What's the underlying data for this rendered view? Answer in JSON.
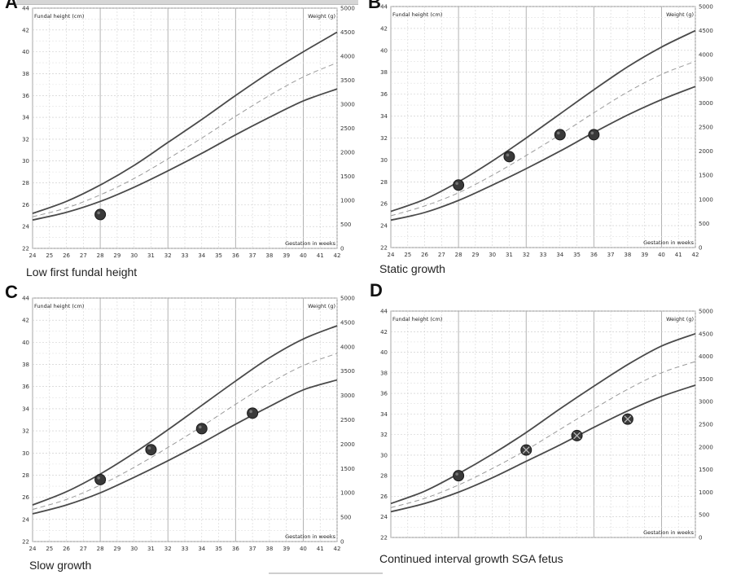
{
  "figure": {
    "panels": [
      {
        "letter": "A",
        "caption": "Low first fundal height",
        "chart_data": {
          "type": "line",
          "ylabel": "Fundal height (cm)",
          "y2label": "Weight (g)",
          "xlabel": "Gestation in weeks",
          "xlim": [
            24,
            42
          ],
          "ylim": [
            22,
            44
          ],
          "y2lim": [
            0,
            5000
          ],
          "x_ticks": [
            24,
            25,
            26,
            27,
            28,
            29,
            30,
            31,
            32,
            33,
            34,
            35,
            36,
            37,
            38,
            39,
            40,
            41,
            42
          ],
          "y_ticks": [
            22,
            24,
            26,
            28,
            30,
            32,
            34,
            36,
            38,
            40,
            42,
            44
          ],
          "y2_ticks": [
            0,
            500,
            1000,
            1500,
            2000,
            2500,
            3000,
            3500,
            4000,
            4500,
            5000
          ],
          "grid": true,
          "series": [
            {
              "role": "upper",
              "style": "solid",
              "x": [
                24,
                26,
                28,
                30,
                32,
                34,
                36,
                38,
                40,
                42
              ],
              "y": [
                25.2,
                26.3,
                27.8,
                29.6,
                31.7,
                33.8,
                36.0,
                38.1,
                40.0,
                41.8
              ]
            },
            {
              "role": "median",
              "style": "dashed",
              "x": [
                24,
                26,
                28,
                30,
                32,
                34,
                36,
                38,
                40,
                42
              ],
              "y": [
                24.9,
                25.7,
                26.9,
                28.4,
                30.2,
                32.1,
                34.1,
                36.0,
                37.7,
                39.0
              ]
            },
            {
              "role": "lower",
              "style": "solid",
              "x": [
                24,
                26,
                28,
                30,
                32,
                34,
                36,
                38,
                40,
                42
              ],
              "y": [
                24.6,
                25.3,
                26.3,
                27.6,
                29.1,
                30.7,
                32.4,
                34.0,
                35.5,
                36.6
              ]
            }
          ],
          "points": [
            {
              "x": 28,
              "y": 25.1,
              "marker": "filled"
            }
          ]
        }
      },
      {
        "letter": "B",
        "caption": "Static growth",
        "chart_data": {
          "type": "line",
          "ylabel": "Fundal height (cm)",
          "y2label": "Weight (g)",
          "xlabel": "Gestation in weeks",
          "xlim": [
            24,
            42
          ],
          "ylim": [
            22,
            44
          ],
          "y2lim": [
            0,
            5000
          ],
          "x_ticks": [
            24,
            25,
            26,
            27,
            28,
            29,
            30,
            31,
            32,
            33,
            34,
            35,
            36,
            37,
            38,
            39,
            40,
            41,
            42
          ],
          "y_ticks": [
            22,
            24,
            26,
            28,
            30,
            32,
            34,
            36,
            38,
            40,
            42,
            44
          ],
          "y2_ticks": [
            0,
            500,
            1000,
            1500,
            2000,
            2500,
            3000,
            3500,
            4000,
            4500,
            5000
          ],
          "grid": true,
          "series": [
            {
              "role": "upper",
              "style": "solid",
              "x": [
                24,
                26,
                28,
                30,
                32,
                34,
                36,
                38,
                40,
                42
              ],
              "y": [
                25.3,
                26.4,
                28.0,
                29.9,
                32.0,
                34.2,
                36.4,
                38.5,
                40.3,
                41.8
              ]
            },
            {
              "role": "median",
              "style": "dashed",
              "x": [
                24,
                26,
                28,
                30,
                32,
                34,
                36,
                38,
                40,
                42
              ],
              "y": [
                24.9,
                25.8,
                27.0,
                28.6,
                30.4,
                32.3,
                34.3,
                36.2,
                37.8,
                39.0
              ]
            },
            {
              "role": "lower",
              "style": "solid",
              "x": [
                24,
                26,
                28,
                30,
                32,
                34,
                36,
                38,
                40,
                42
              ],
              "y": [
                24.5,
                25.2,
                26.3,
                27.7,
                29.2,
                30.8,
                32.5,
                34.1,
                35.5,
                36.7
              ]
            }
          ],
          "points": [
            {
              "x": 28,
              "y": 27.7,
              "marker": "filled"
            },
            {
              "x": 31,
              "y": 30.3,
              "marker": "filled"
            },
            {
              "x": 34,
              "y": 32.3,
              "marker": "filled"
            },
            {
              "x": 36,
              "y": 32.3,
              "marker": "filled"
            }
          ]
        }
      },
      {
        "letter": "C",
        "caption": "Slow growth",
        "chart_data": {
          "type": "line",
          "ylabel": "Fundal height (cm)",
          "y2label": "Weight (g)",
          "xlabel": "Gestation in weeks",
          "xlim": [
            24,
            42
          ],
          "ylim": [
            22,
            44
          ],
          "y2lim": [
            0,
            5000
          ],
          "x_ticks": [
            24,
            25,
            26,
            27,
            28,
            29,
            30,
            31,
            32,
            33,
            34,
            35,
            36,
            37,
            38,
            39,
            40,
            41,
            42
          ],
          "y_ticks": [
            22,
            24,
            26,
            28,
            30,
            32,
            34,
            36,
            38,
            40,
            42,
            44
          ],
          "y2_ticks": [
            0,
            500,
            1000,
            1500,
            2000,
            2500,
            3000,
            3500,
            4000,
            4500,
            5000
          ],
          "grid": true,
          "series": [
            {
              "role": "upper",
              "style": "solid",
              "x": [
                24,
                26,
                28,
                30,
                32,
                34,
                36,
                38,
                40,
                42
              ],
              "y": [
                25.3,
                26.5,
                28.1,
                30.0,
                32.1,
                34.3,
                36.5,
                38.6,
                40.3,
                41.5
              ]
            },
            {
              "role": "median",
              "style": "dashed",
              "x": [
                24,
                26,
                28,
                30,
                32,
                34,
                36,
                38,
                40,
                42
              ],
              "y": [
                24.9,
                25.8,
                27.1,
                28.7,
                30.5,
                32.4,
                34.4,
                36.3,
                37.9,
                39.0
              ]
            },
            {
              "role": "lower",
              "style": "solid",
              "x": [
                24,
                26,
                28,
                30,
                32,
                34,
                36,
                38,
                40,
                42
              ],
              "y": [
                24.5,
                25.3,
                26.4,
                27.8,
                29.3,
                30.9,
                32.6,
                34.2,
                35.7,
                36.6
              ]
            }
          ],
          "points": [
            {
              "x": 28,
              "y": 27.6,
              "marker": "filled"
            },
            {
              "x": 31,
              "y": 30.3,
              "marker": "filled"
            },
            {
              "x": 34,
              "y": 32.2,
              "marker": "filled"
            },
            {
              "x": 37,
              "y": 33.6,
              "marker": "filled"
            }
          ]
        }
      },
      {
        "letter": "D",
        "caption": "Continued interval growth    SGA fetus",
        "chart_data": {
          "type": "line",
          "ylabel": "Fundal height (cm)",
          "y2label": "Weight (g)",
          "xlabel": "Gestation in weeks",
          "xlim": [
            24,
            42
          ],
          "ylim": [
            22,
            44
          ],
          "y2lim": [
            0,
            5000
          ],
          "x_ticks": [],
          "y_ticks": [
            22,
            24,
            26,
            28,
            30,
            32,
            34,
            36,
            38,
            40,
            42,
            44
          ],
          "y2_ticks": [
            0,
            500,
            1000,
            1500,
            2000,
            2500,
            3000,
            3500,
            4000,
            4500,
            5000
          ],
          "grid": true,
          "series": [
            {
              "role": "upper",
              "style": "solid",
              "x": [
                24,
                26,
                28,
                30,
                32,
                34,
                36,
                38,
                40,
                42
              ],
              "y": [
                25.3,
                26.5,
                28.2,
                30.1,
                32.2,
                34.5,
                36.7,
                38.8,
                40.6,
                41.8
              ]
            },
            {
              "role": "median",
              "style": "dashed",
              "x": [
                24,
                26,
                28,
                30,
                32,
                34,
                36,
                38,
                40,
                42
              ],
              "y": [
                24.9,
                25.8,
                27.1,
                28.7,
                30.5,
                32.5,
                34.5,
                36.4,
                38.0,
                39.1
              ]
            },
            {
              "role": "lower",
              "style": "solid",
              "x": [
                24,
                26,
                28,
                30,
                32,
                34,
                36,
                38,
                40,
                42
              ],
              "y": [
                24.5,
                25.3,
                26.4,
                27.8,
                29.4,
                31.0,
                32.7,
                34.3,
                35.7,
                36.8
              ]
            }
          ],
          "points": [
            {
              "x": 28,
              "y": 28.0,
              "marker": "filled"
            },
            {
              "x": 32,
              "y": 30.5,
              "marker": "crossed"
            },
            {
              "x": 35,
              "y": 31.9,
              "marker": "crossed"
            },
            {
              "x": 38,
              "y": 33.5,
              "marker": "crossed"
            }
          ]
        }
      }
    ]
  }
}
